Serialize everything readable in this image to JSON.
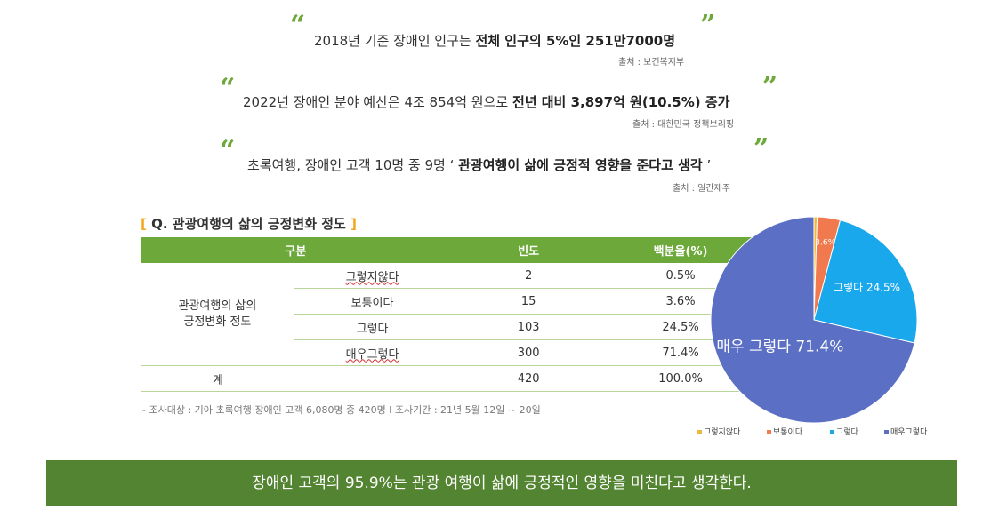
{
  "quotes": [
    {
      "text_plain": "2018년 기준 장애인 인구는 ",
      "text_bold": "전체 인구의 5%인 251만7000명",
      "text_after": "",
      "source": "출처 : 보건복지부"
    },
    {
      "text_plain": "2022년 장애인 분야 예산은 4조 854억 원으로 ",
      "text_bold": "전년 대비 3,897억 원(10.5%) 증가",
      "text_after": "",
      "source": "출처 : 대한민국 정책브리핑"
    },
    {
      "text_plain": "초록여행, 장애인 고객 10명 중 9명 ‘ ",
      "text_bold": "관광여행이 삶에 긍정적 영향을 준다고 생각",
      "text_after": " ’",
      "source": "출처 : 일간제주"
    }
  ],
  "table": {
    "title": "Q. 관광여행의 삶의 긍정변화 정도",
    "bracket_open": "[",
    "bracket_close": "]",
    "headers": [
      "구분",
      "빈도",
      "백분율(%)"
    ],
    "group_label_line1": "관광여행의 삶의",
    "group_label_line2": "긍정변화 정도",
    "rows": [
      {
        "label": "그렇지않다",
        "freq": "2",
        "pct": "0.5%"
      },
      {
        "label": "보통이다",
        "freq": "15",
        "pct": "3.6%"
      },
      {
        "label": "그렇다",
        "freq": "103",
        "pct": "24.5%"
      },
      {
        "label": "매우그렇다",
        "freq": "300",
        "pct": "71.4%"
      }
    ],
    "total": {
      "label": "계",
      "freq": "420",
      "pct": "100.0%"
    },
    "note": "- 조사대상 : 기아 초록여행 장애인 고객 6,080명 중 420명 l 조사기간 : 21년 5월 12일 ~ 20일"
  },
  "chart_data": {
    "type": "pie",
    "title": "Q. 관광여행의 삶의 긍정변화 정도",
    "categories": [
      "그렇지않다",
      "보통이다",
      "그렇다",
      "매우그렇다"
    ],
    "values": [
      0.5,
      3.6,
      24.5,
      71.4
    ],
    "colors": [
      "#f0b83a",
      "#f07a4e",
      "#1aa8ec",
      "#5b6fc4"
    ],
    "data_labels": [
      "0.5%",
      "3.6%",
      "그렇다 24.5%",
      "매우 그렇다 71.4%"
    ],
    "legend_position": "bottom-right"
  },
  "banner": {
    "text": "장애인 고객의 95.9%는 관광 여행이 삶에 긍정적인 영향을 미친다고 생각한다."
  },
  "colors": {
    "accent_green": "#6ca83a",
    "banner_green": "#538431",
    "bracket_orange": "#f0a81e"
  }
}
